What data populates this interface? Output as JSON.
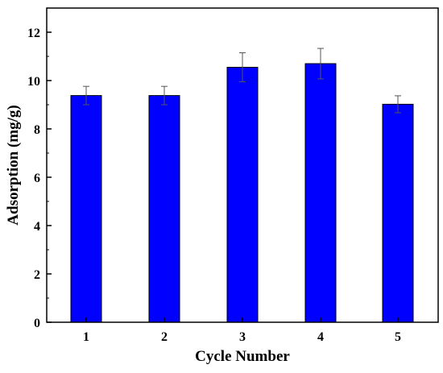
{
  "chart_data": {
    "type": "bar",
    "categories": [
      "1",
      "2",
      "3",
      "4",
      "5"
    ],
    "values": [
      9.38,
      9.38,
      10.55,
      10.7,
      9.02
    ],
    "errors": [
      0.38,
      0.38,
      0.6,
      0.63,
      0.35
    ],
    "xlabel": "Cycle Number",
    "ylabel": "Adsorption (mg/g)",
    "ylim": [
      0,
      13
    ],
    "y_ticks": [
      "0",
      "2",
      "4",
      "6",
      "8",
      "10",
      "12"
    ],
    "grid": false,
    "bar_color": "#0000ff",
    "bar_edge_color": "#000000",
    "error_bar_color": "#555555"
  }
}
